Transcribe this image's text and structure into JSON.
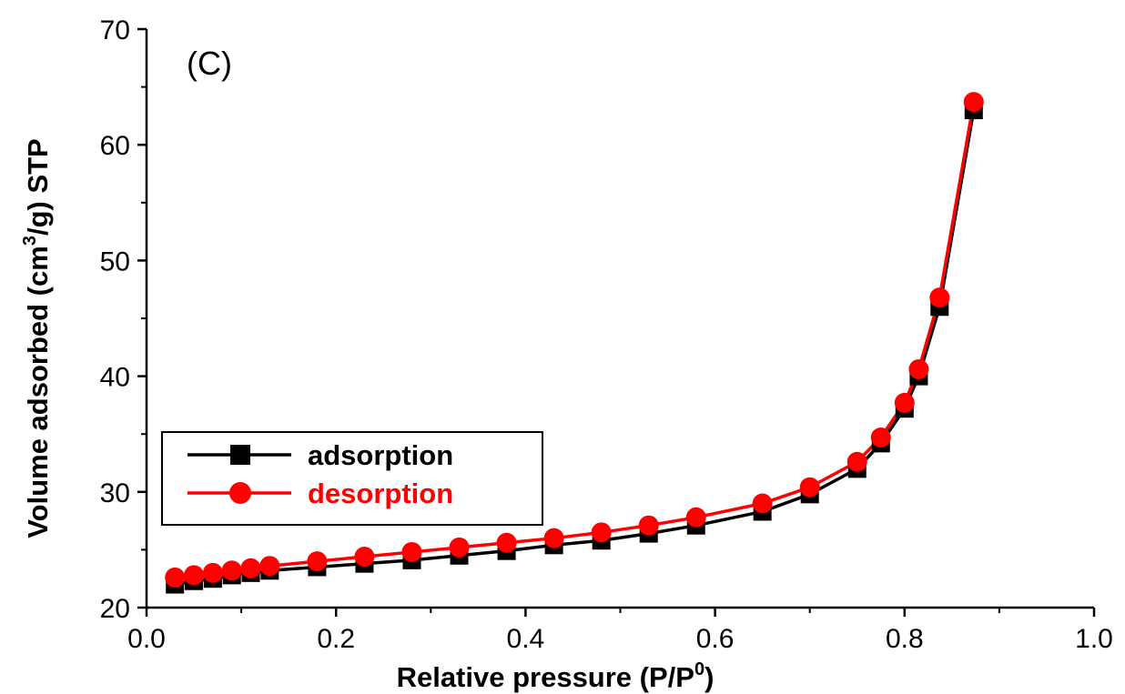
{
  "chart_data": {
    "type": "line",
    "panel_label": "(C)",
    "xlabel": "Relative pressure (P/P",
    "xlabel_sup": "0",
    "xlabel_end": ")",
    "ylabel": "Volume adsorbed (cm",
    "ylabel_sup": "3",
    "ylabel_end": "/g) STP",
    "xlim": [
      0.0,
      1.0
    ],
    "ylim": [
      20,
      70
    ],
    "x_ticks": [
      "0.0",
      "0.2",
      "0.4",
      "0.6",
      "0.8",
      "1.0"
    ],
    "y_ticks": [
      "20",
      "30",
      "40",
      "50",
      "60",
      "70"
    ],
    "legend_position": "left-middle",
    "grid": false,
    "series": [
      {
        "name": "adsorption",
        "color": "#000000",
        "marker": "square",
        "x": [
          0.03,
          0.05,
          0.07,
          0.09,
          0.11,
          0.13,
          0.18,
          0.23,
          0.28,
          0.33,
          0.38,
          0.43,
          0.48,
          0.53,
          0.58,
          0.65,
          0.7,
          0.75,
          0.775,
          0.8,
          0.815,
          0.837,
          0.873
        ],
        "y": [
          22.0,
          22.3,
          22.5,
          22.8,
          23.0,
          23.2,
          23.5,
          23.8,
          24.1,
          24.5,
          24.9,
          25.4,
          25.8,
          26.4,
          27.1,
          28.3,
          29.8,
          32.0,
          34.2,
          37.2,
          40.0,
          46.0,
          63.0
        ]
      },
      {
        "name": "desorption",
        "color": "#ff0000",
        "marker": "circle",
        "x": [
          0.03,
          0.05,
          0.07,
          0.09,
          0.11,
          0.13,
          0.18,
          0.23,
          0.28,
          0.33,
          0.38,
          0.43,
          0.48,
          0.53,
          0.58,
          0.65,
          0.7,
          0.75,
          0.775,
          0.8,
          0.815,
          0.837,
          0.873
        ],
        "y": [
          22.6,
          22.8,
          23.0,
          23.2,
          23.4,
          23.6,
          24.0,
          24.4,
          24.8,
          25.2,
          25.6,
          26.0,
          26.5,
          27.1,
          27.8,
          29.0,
          30.4,
          32.6,
          34.7,
          37.7,
          40.6,
          46.8,
          63.7
        ]
      }
    ]
  }
}
